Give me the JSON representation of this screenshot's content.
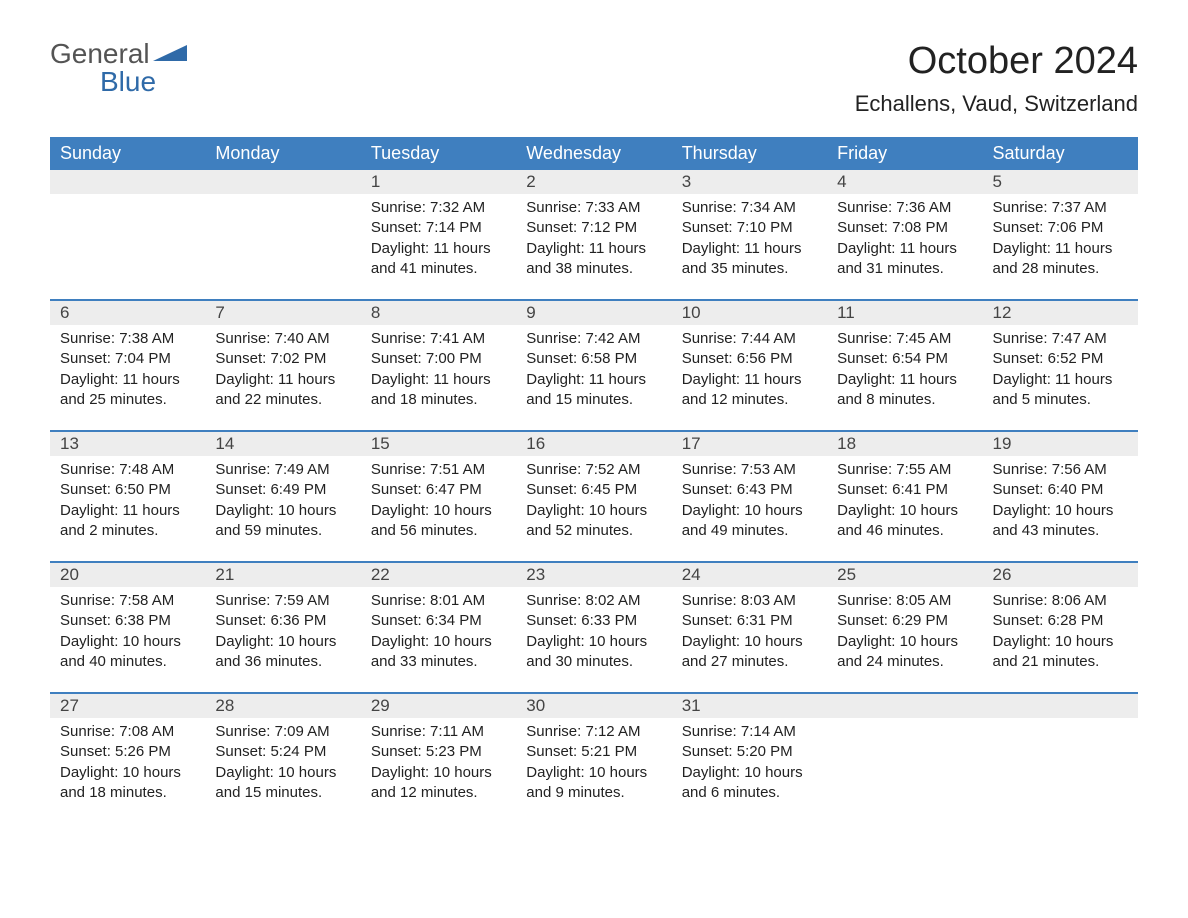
{
  "brand": {
    "text_general": "General",
    "text_blue": "Blue",
    "icon_color": "#2f6aa8"
  },
  "title": "October 2024",
  "location": "Echallens, Vaud, Switzerland",
  "colors": {
    "header_bg": "#3f7fbf",
    "header_text": "#ffffff",
    "daynum_bg": "#ededed",
    "border": "#3f7fbf",
    "body_text": "#222222",
    "background": "#ffffff"
  },
  "typography": {
    "title_fontsize": 38,
    "location_fontsize": 22,
    "header_fontsize": 18,
    "cell_fontsize": 15,
    "font_family": "Arial"
  },
  "layout": {
    "columns": 7,
    "rows": 5,
    "first_day_column_index": 2
  },
  "day_headers": [
    "Sunday",
    "Monday",
    "Tuesday",
    "Wednesday",
    "Thursday",
    "Friday",
    "Saturday"
  ],
  "labels": {
    "sunrise": "Sunrise:",
    "sunset": "Sunset:",
    "daylight": "Daylight:"
  },
  "days": [
    {
      "n": 1,
      "sunrise": "7:32 AM",
      "sunset": "7:14 PM",
      "daylight": "11 hours and 41 minutes."
    },
    {
      "n": 2,
      "sunrise": "7:33 AM",
      "sunset": "7:12 PM",
      "daylight": "11 hours and 38 minutes."
    },
    {
      "n": 3,
      "sunrise": "7:34 AM",
      "sunset": "7:10 PM",
      "daylight": "11 hours and 35 minutes."
    },
    {
      "n": 4,
      "sunrise": "7:36 AM",
      "sunset": "7:08 PM",
      "daylight": "11 hours and 31 minutes."
    },
    {
      "n": 5,
      "sunrise": "7:37 AM",
      "sunset": "7:06 PM",
      "daylight": "11 hours and 28 minutes."
    },
    {
      "n": 6,
      "sunrise": "7:38 AM",
      "sunset": "7:04 PM",
      "daylight": "11 hours and 25 minutes."
    },
    {
      "n": 7,
      "sunrise": "7:40 AM",
      "sunset": "7:02 PM",
      "daylight": "11 hours and 22 minutes."
    },
    {
      "n": 8,
      "sunrise": "7:41 AM",
      "sunset": "7:00 PM",
      "daylight": "11 hours and 18 minutes."
    },
    {
      "n": 9,
      "sunrise": "7:42 AM",
      "sunset": "6:58 PM",
      "daylight": "11 hours and 15 minutes."
    },
    {
      "n": 10,
      "sunrise": "7:44 AM",
      "sunset": "6:56 PM",
      "daylight": "11 hours and 12 minutes."
    },
    {
      "n": 11,
      "sunrise": "7:45 AM",
      "sunset": "6:54 PM",
      "daylight": "11 hours and 8 minutes."
    },
    {
      "n": 12,
      "sunrise": "7:47 AM",
      "sunset": "6:52 PM",
      "daylight": "11 hours and 5 minutes."
    },
    {
      "n": 13,
      "sunrise": "7:48 AM",
      "sunset": "6:50 PM",
      "daylight": "11 hours and 2 minutes."
    },
    {
      "n": 14,
      "sunrise": "7:49 AM",
      "sunset": "6:49 PM",
      "daylight": "10 hours and 59 minutes."
    },
    {
      "n": 15,
      "sunrise": "7:51 AM",
      "sunset": "6:47 PM",
      "daylight": "10 hours and 56 minutes."
    },
    {
      "n": 16,
      "sunrise": "7:52 AM",
      "sunset": "6:45 PM",
      "daylight": "10 hours and 52 minutes."
    },
    {
      "n": 17,
      "sunrise": "7:53 AM",
      "sunset": "6:43 PM",
      "daylight": "10 hours and 49 minutes."
    },
    {
      "n": 18,
      "sunrise": "7:55 AM",
      "sunset": "6:41 PM",
      "daylight": "10 hours and 46 minutes."
    },
    {
      "n": 19,
      "sunrise": "7:56 AM",
      "sunset": "6:40 PM",
      "daylight": "10 hours and 43 minutes."
    },
    {
      "n": 20,
      "sunrise": "7:58 AM",
      "sunset": "6:38 PM",
      "daylight": "10 hours and 40 minutes."
    },
    {
      "n": 21,
      "sunrise": "7:59 AM",
      "sunset": "6:36 PM",
      "daylight": "10 hours and 36 minutes."
    },
    {
      "n": 22,
      "sunrise": "8:01 AM",
      "sunset": "6:34 PM",
      "daylight": "10 hours and 33 minutes."
    },
    {
      "n": 23,
      "sunrise": "8:02 AM",
      "sunset": "6:33 PM",
      "daylight": "10 hours and 30 minutes."
    },
    {
      "n": 24,
      "sunrise": "8:03 AM",
      "sunset": "6:31 PM",
      "daylight": "10 hours and 27 minutes."
    },
    {
      "n": 25,
      "sunrise": "8:05 AM",
      "sunset": "6:29 PM",
      "daylight": "10 hours and 24 minutes."
    },
    {
      "n": 26,
      "sunrise": "8:06 AM",
      "sunset": "6:28 PM",
      "daylight": "10 hours and 21 minutes."
    },
    {
      "n": 27,
      "sunrise": "7:08 AM",
      "sunset": "5:26 PM",
      "daylight": "10 hours and 18 minutes."
    },
    {
      "n": 28,
      "sunrise": "7:09 AM",
      "sunset": "5:24 PM",
      "daylight": "10 hours and 15 minutes."
    },
    {
      "n": 29,
      "sunrise": "7:11 AM",
      "sunset": "5:23 PM",
      "daylight": "10 hours and 12 minutes."
    },
    {
      "n": 30,
      "sunrise": "7:12 AM",
      "sunset": "5:21 PM",
      "daylight": "10 hours and 9 minutes."
    },
    {
      "n": 31,
      "sunrise": "7:14 AM",
      "sunset": "5:20 PM",
      "daylight": "10 hours and 6 minutes."
    }
  ]
}
